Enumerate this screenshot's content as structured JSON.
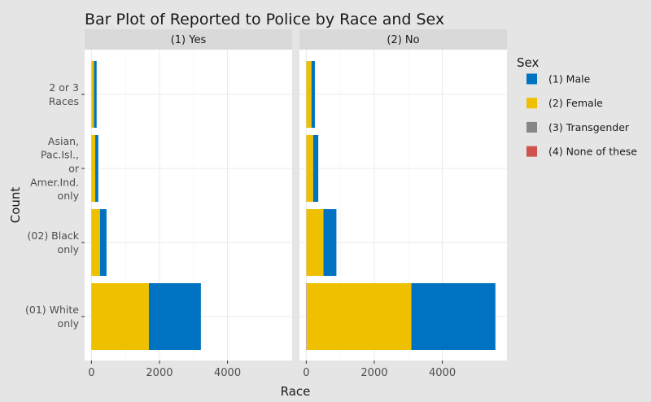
{
  "chart_data": {
    "type": "bar",
    "orientation": "horizontal",
    "stacked": true,
    "title": "Bar Plot of Reported to Police by Race and Sex",
    "xlabel": "Race",
    "ylabel": "Count",
    "xlim": [
      -200,
      5900
    ],
    "x_ticks": [
      0,
      2000,
      4000
    ],
    "x_tick_labels": [
      "0",
      "2000",
      "4000"
    ],
    "grid": true,
    "legend_position": "right",
    "categories": [
      "(01) White\nonly",
      "(02) Black\nonly",
      "Asian,\nPac.Isl.,\nor\nAmer.Ind.\nonly",
      "2 or 3\nRaces"
    ],
    "legend_title": "Sex",
    "legend": [
      {
        "name": "(1) Male",
        "color": "#0072c2"
      },
      {
        "name": "(2) Female",
        "color": "#efc000"
      },
      {
        "name": "(3) Transgender",
        "color": "#868686"
      },
      {
        "name": "(4) None of these",
        "color": "#cd534c"
      }
    ],
    "panels": [
      {
        "label": "(1) Yes",
        "series": [
          {
            "name": "(4) None of these",
            "values": [
              3,
              1,
              1,
              1
            ]
          },
          {
            "name": "(3) Transgender",
            "values": [
              5,
              2,
              1,
              2
            ]
          },
          {
            "name": "(2) Female",
            "values": [
              1680,
              250,
              110,
              70
            ]
          },
          {
            "name": "(1) Male",
            "values": [
              1530,
              190,
              90,
              80
            ]
          }
        ]
      },
      {
        "label": "(2) No",
        "series": [
          {
            "name": "(4) None of these",
            "values": [
              8,
              2,
              1,
              1
            ]
          },
          {
            "name": "(3) Transgender",
            "values": [
              12,
              4,
              2,
              2
            ]
          },
          {
            "name": "(2) Female",
            "values": [
              3070,
              500,
              200,
              150
            ]
          },
          {
            "name": "(1) Male",
            "values": [
              2470,
              380,
              150,
              100
            ]
          }
        ]
      }
    ]
  }
}
